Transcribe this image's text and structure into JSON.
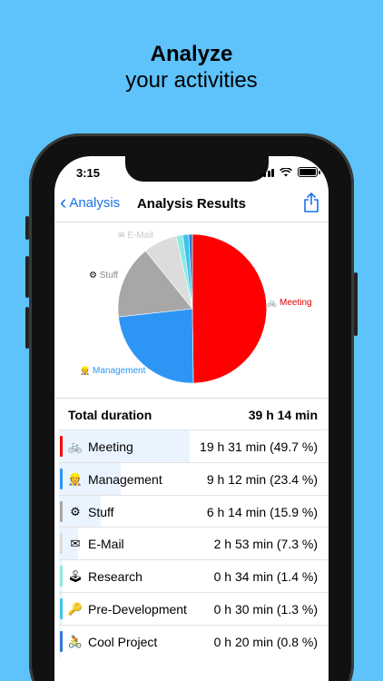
{
  "promo": {
    "line1": "Analyze",
    "line2": "your activities"
  },
  "status": {
    "time": "3:15"
  },
  "navbar": {
    "back_label": "Analysis",
    "title": "Analysis Results"
  },
  "chart_data": {
    "type": "pie",
    "labels": [
      "Meeting",
      "Management",
      "Stuff",
      "E-Mail",
      "Research",
      "Pre-Development",
      "Cool Project"
    ],
    "values": [
      49.7,
      23.4,
      15.9,
      7.3,
      1.4,
      1.3,
      0.8
    ],
    "colors": [
      "#fe0000",
      "#2d96f5",
      "#a7a7a7",
      "#dcdcdc",
      "#8ee8e2",
      "#3fc3f0",
      "#2f7cd6"
    ],
    "shown_labels": [
      "Meeting",
      "Management",
      "Stuff",
      "E-Mail"
    ]
  },
  "total": {
    "label": "Total duration",
    "value": "39 h 14 min"
  },
  "rows": [
    {
      "name": "Meeting",
      "icon": "bicycle-icon",
      "glyph": "🚲",
      "duration": "19 h 31 min (49.7 %)",
      "percent": 49.7,
      "color": "#fe0000"
    },
    {
      "name": "Management",
      "icon": "manager-icon",
      "glyph": "👷",
      "duration": "9 h 12 min (23.4 %)",
      "percent": 23.4,
      "color": "#2d96f5"
    },
    {
      "name": "Stuff",
      "icon": "gear-icon",
      "glyph": "⚙",
      "duration": "6 h 14 min (15.9 %)",
      "percent": 15.9,
      "color": "#a7a7a7"
    },
    {
      "name": "E-Mail",
      "icon": "envelope-icon",
      "glyph": "✉",
      "duration": "2 h 53 min (7.3 %)",
      "percent": 7.3,
      "color": "#dcdcdc"
    },
    {
      "name": "Research",
      "icon": "joystick-icon",
      "glyph": "🕹",
      "duration": "0 h 34 min (1.4 %)",
      "percent": 1.4,
      "color": "#8ee8e2"
    },
    {
      "name": "Pre-Development",
      "icon": "key-icon",
      "glyph": "🔑",
      "duration": "0 h 30 min (1.3 %)",
      "percent": 1.3,
      "color": "#3fc3f0"
    },
    {
      "name": "Cool Project",
      "icon": "cyclist-icon",
      "glyph": "🚴",
      "duration": "0 h 20 min (0.8 %)",
      "percent": 0.8,
      "color": "#2f7cd6"
    }
  ]
}
